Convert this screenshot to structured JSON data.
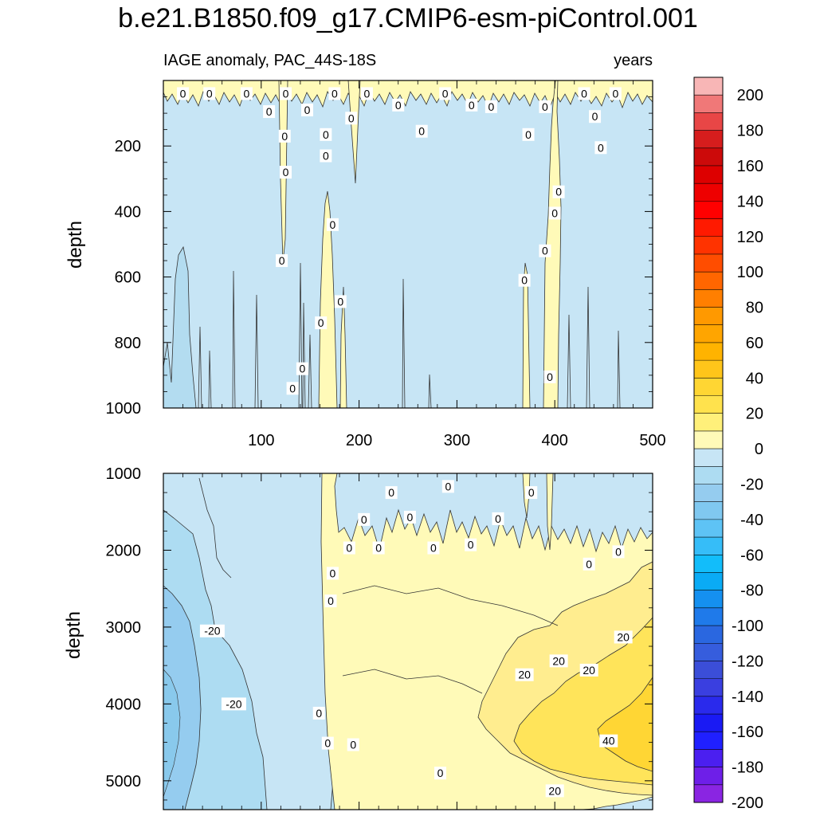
{
  "chart_data": {
    "type": "heatmap",
    "title": "b.e21.B1850.f09_g17.CMIP6-esm-piControl.001",
    "variable_label": "IAGE anomaly, PAC_44S-18S",
    "units_label": "years",
    "ylabel": "depth",
    "x_range": [
      0,
      500
    ],
    "x_ticks": [
      100,
      200,
      300,
      400,
      500
    ],
    "panels": [
      {
        "name": "upper",
        "ylim": [
          0,
          1000
        ],
        "y_ticks": [
          200,
          400,
          600,
          800,
          1000
        ],
        "x_tick_labels_visible": true,
        "contour_labels": [
          {
            "year": 20,
            "depth": 40,
            "value": 0
          },
          {
            "year": 47,
            "depth": 40,
            "value": 0
          },
          {
            "year": 85,
            "depth": 40,
            "value": 0
          },
          {
            "year": 108,
            "depth": 95,
            "value": 0
          },
          {
            "year": 125,
            "depth": 40,
            "value": 0
          },
          {
            "year": 147,
            "depth": 90,
            "value": 0
          },
          {
            "year": 175,
            "depth": 40,
            "value": 0
          },
          {
            "year": 208,
            "depth": 40,
            "value": 0
          },
          {
            "year": 240,
            "depth": 75,
            "value": 0
          },
          {
            "year": 288,
            "depth": 40,
            "value": 0
          },
          {
            "year": 315,
            "depth": 75,
            "value": 0
          },
          {
            "year": 335,
            "depth": 80,
            "value": 0
          },
          {
            "year": 390,
            "depth": 80,
            "value": 0
          },
          {
            "year": 430,
            "depth": 40,
            "value": 0
          },
          {
            "year": 462,
            "depth": 40,
            "value": 0
          },
          {
            "year": 441,
            "depth": 110,
            "value": 0
          },
          {
            "year": 192,
            "depth": 115,
            "value": 0
          },
          {
            "year": 264,
            "depth": 155,
            "value": 0
          },
          {
            "year": 166,
            "depth": 165,
            "value": 0
          },
          {
            "year": 373,
            "depth": 165,
            "value": 0
          },
          {
            "year": 124,
            "depth": 170,
            "value": 0
          },
          {
            "year": 447,
            "depth": 205,
            "value": 0
          },
          {
            "year": 166,
            "depth": 230,
            "value": 0
          },
          {
            "year": 125,
            "depth": 280,
            "value": 0
          },
          {
            "year": 404,
            "depth": 340,
            "value": 0
          },
          {
            "year": 400,
            "depth": 405,
            "value": 0
          },
          {
            "year": 173,
            "depth": 440,
            "value": 0
          },
          {
            "year": 390,
            "depth": 520,
            "value": 0
          },
          {
            "year": 121,
            "depth": 550,
            "value": 0
          },
          {
            "year": 369,
            "depth": 610,
            "value": 0
          },
          {
            "year": 181,
            "depth": 675,
            "value": 0
          },
          {
            "year": 161,
            "depth": 740,
            "value": 0
          },
          {
            "year": 142,
            "depth": 880,
            "value": 0
          },
          {
            "year": 395,
            "depth": 905,
            "value": 0
          },
          {
            "year": 132,
            "depth": 940,
            "value": 0
          }
        ]
      },
      {
        "name": "lower",
        "ylim": [
          1000,
          5375
        ],
        "y_ticks": [
          1000,
          2000,
          3000,
          4000,
          5000
        ],
        "x_tick_labels_visible": false,
        "contour_labels": [
          {
            "year": 233,
            "depth": 1250,
            "value": 0
          },
          {
            "year": 291,
            "depth": 1170,
            "value": 0
          },
          {
            "year": 376,
            "depth": 1250,
            "value": 0
          },
          {
            "year": 205,
            "depth": 1600,
            "value": 0
          },
          {
            "year": 252,
            "depth": 1570,
            "value": 0
          },
          {
            "year": 342,
            "depth": 1590,
            "value": 0
          },
          {
            "year": 190,
            "depth": 1970,
            "value": 0
          },
          {
            "year": 220,
            "depth": 1970,
            "value": 0
          },
          {
            "year": 276,
            "depth": 1970,
            "value": 0
          },
          {
            "year": 314,
            "depth": 1930,
            "value": 0
          },
          {
            "year": 435,
            "depth": 2180,
            "value": 0
          },
          {
            "year": 465,
            "depth": 2020,
            "value": 0
          },
          {
            "year": 173,
            "depth": 2300,
            "value": 0
          },
          {
            "year": 171,
            "depth": 2660,
            "value": 0
          },
          {
            "year": 50,
            "depth": 3050,
            "value": -20
          },
          {
            "year": 72,
            "depth": 4000,
            "value": -20
          },
          {
            "year": 159,
            "depth": 4120,
            "value": 0
          },
          {
            "year": 168,
            "depth": 4510,
            "value": 0
          },
          {
            "year": 194,
            "depth": 4530,
            "value": 0
          },
          {
            "year": 283,
            "depth": 4900,
            "value": 0
          },
          {
            "year": 404,
            "depth": 3440,
            "value": 20
          },
          {
            "year": 369,
            "depth": 3620,
            "value": 20
          },
          {
            "year": 435,
            "depth": 3560,
            "value": 20
          },
          {
            "year": 470,
            "depth": 3130,
            "value": 20
          },
          {
            "year": 455,
            "depth": 4480,
            "value": 40
          },
          {
            "year": 400,
            "depth": 5130,
            "value": 20
          }
        ]
      }
    ],
    "colorbar": {
      "tick_labels": [
        "200",
        "180",
        "160",
        "140",
        "120",
        "100",
        "80",
        "60",
        "40",
        "20",
        "0",
        "-20",
        "-40",
        "-60",
        "-80",
        "-100",
        "-120",
        "-140",
        "-160",
        "-180",
        "-200"
      ],
      "colors_top_to_bottom": [
        "#f8b6b6",
        "#f07878",
        "#e84646",
        "#d61d1d",
        "#cc0a0a",
        "#dd0000",
        "#ee0000",
        "#ff0000",
        "#ff1a00",
        "#ff3300",
        "#ff4d00",
        "#ff6600",
        "#ff7f00",
        "#ff9900",
        "#ffa500",
        "#ffb300",
        "#ffc51a",
        "#ffd633",
        "#ffe24d",
        "#fff07a",
        "#fffab8",
        "#c7e5f5",
        "#addcf2",
        "#95ccef",
        "#80c8f0",
        "#5ec3f5",
        "#36bdf8",
        "#12bdfa",
        "#0aabf5",
        "#1590f0",
        "#1f7aea",
        "#2a67e0",
        "#365ddd",
        "#3b4ed8",
        "#3a3fe0",
        "#2a2aec",
        "#1a1af4",
        "#2020ff",
        "#4b1ff0",
        "#6e1fe8",
        "#8a25e2"
      ]
    }
  }
}
